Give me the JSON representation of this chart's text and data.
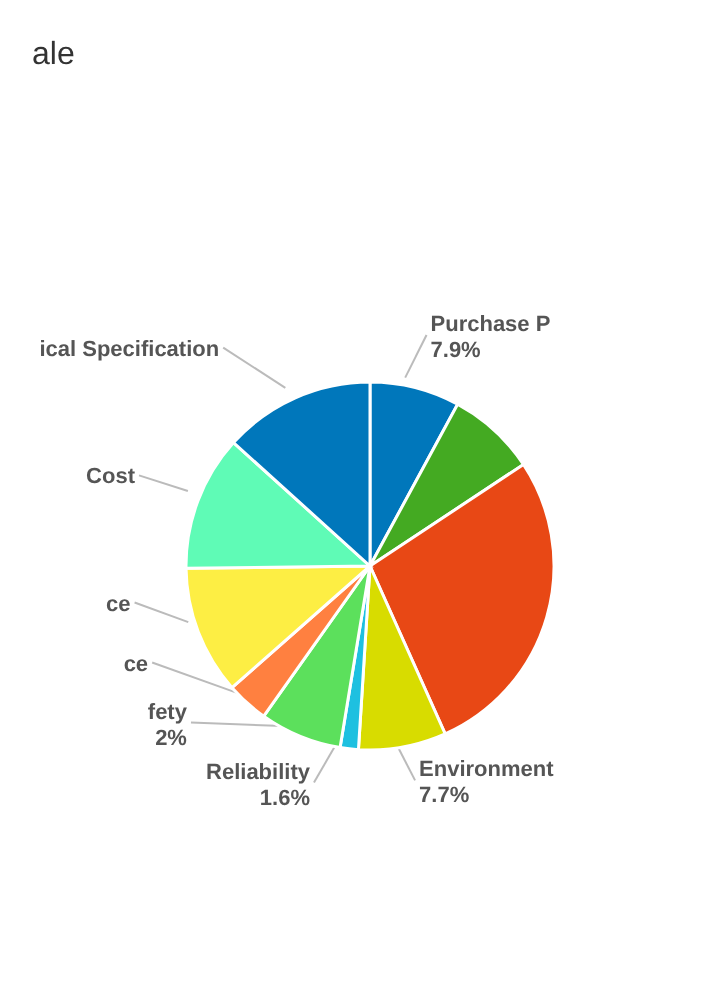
{
  "chart_data": {
    "type": "pie",
    "title": "ale",
    "categories": [
      "Purchase P",
      null,
      null,
      "Environment",
      "Reliability",
      "fety",
      "ce",
      "ce",
      "Cost",
      "ical Specification"
    ],
    "values": [
      7.9,
      7.8,
      27.6,
      7.7,
      1.6,
      7.2,
      3.7,
      11.3,
      11.9,
      13.3
    ],
    "value_labels": [
      "7.9%",
      null,
      null,
      "7.7%",
      "1.6%",
      null,
      null,
      null,
      null,
      null
    ],
    "annotations": [
      {
        "text": "2%",
        "x": "fety"
      }
    ],
    "colors": [
      "#0077bb",
      "#44aa22",
      "#e84815",
      "#d8dc00",
      "#1ec0e0",
      "#5ce05c",
      "#ff8040",
      "#fdee44",
      "#5ffbb6",
      "#0077bb"
    ]
  }
}
